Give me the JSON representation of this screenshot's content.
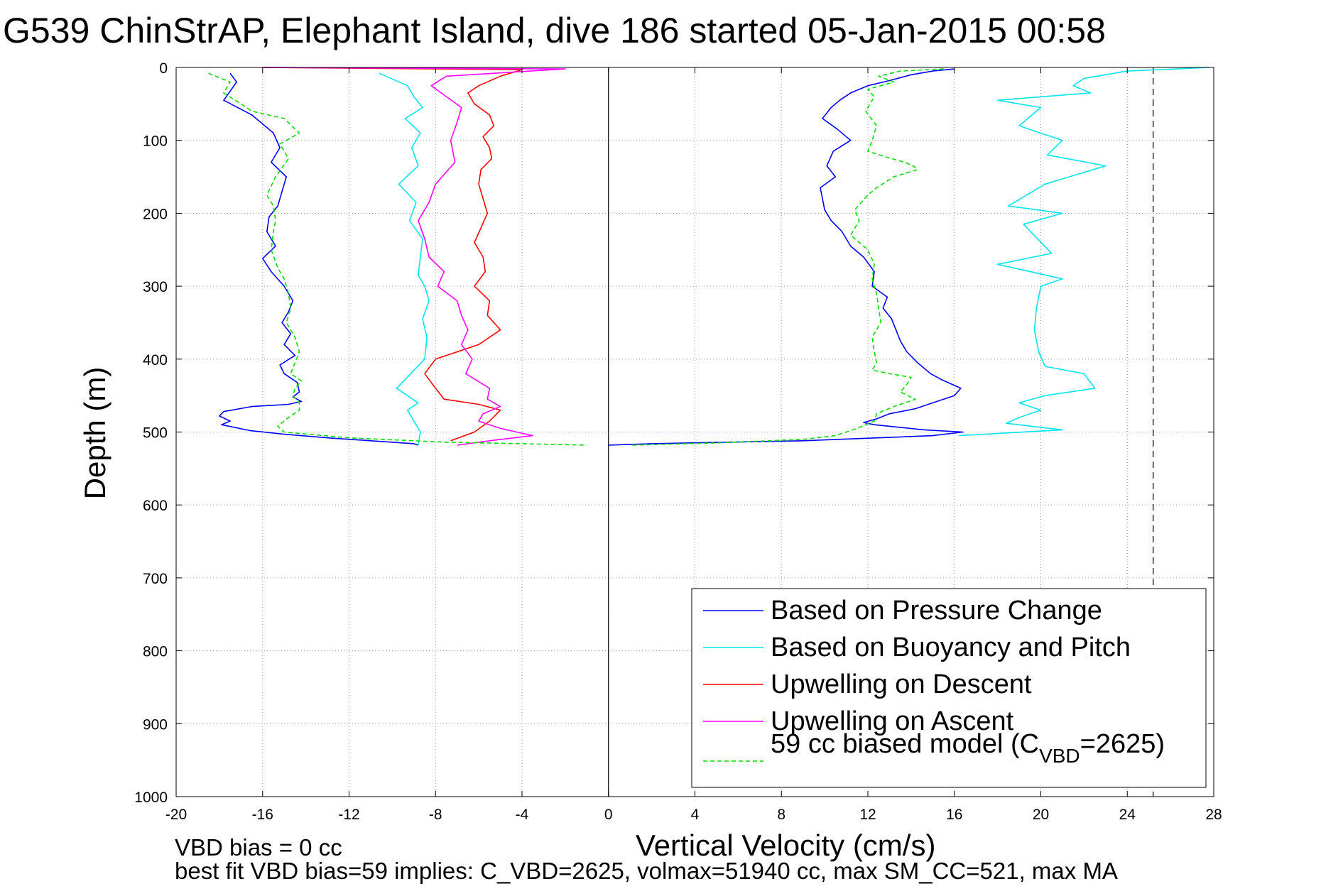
{
  "chart_data": {
    "type": "line",
    "title": "G539 ChinStrAP, Elephant Island, dive 186 started 05-Jan-2015 00:58",
    "xlabel": "Vertical Velocity (cm/s)",
    "ylabel": "Depth (m)",
    "xlim": [
      -20,
      28
    ],
    "ylim": [
      0,
      1000
    ],
    "y_reversed": true,
    "grid": true,
    "legend_position": "bottom-right",
    "x_ticks": [
      "-20",
      "-16",
      "-12",
      "-8",
      "-4",
      "0",
      "4",
      "8",
      "12",
      "16",
      "20",
      "24",
      "28"
    ],
    "y_ticks": [
      "0",
      "100",
      "200",
      "300",
      "400",
      "500",
      "600",
      "700",
      "800",
      "900",
      "1000"
    ],
    "reference_lines": [
      {
        "orientation": "vertical",
        "x": 0,
        "style": "solid"
      },
      {
        "orientation": "vertical",
        "x": 25.2,
        "style": "dashed"
      }
    ],
    "series": [
      {
        "name": "Based on Pressure Change",
        "color": "#0000ff",
        "style": "solid",
        "segments": [
          {
            "x": [
              -17.5,
              -17.2,
              -17.8,
              -16.5,
              -15.5,
              -15.2,
              -15.6,
              -14.9,
              -15.1,
              -15.3,
              -15.7,
              -15.8,
              -15.4,
              -16.0,
              -15.6,
              -15.0,
              -14.6,
              -14.8,
              -15.1,
              -14.7,
              -15.0,
              -14.5,
              -15.2,
              -15.0,
              -14.4,
              -14.3,
              -14.6,
              -14.2,
              -14.8,
              -16.5,
              -17.8,
              -18.0,
              -17.5,
              -17.9,
              -16.6,
              -15.0,
              -13.0,
              -11.0,
              -9.0,
              -8.8
            ],
            "y": [
              8,
              20,
              45,
              65,
              90,
              110,
              130,
              150,
              170,
              190,
              205,
              225,
              245,
              262,
              280,
              300,
              320,
              335,
              350,
              365,
              380,
              395,
              408,
              420,
              432,
              445,
              452,
              458,
              462,
              465,
              472,
              478,
              485,
              490,
              498,
              503,
              508,
              512,
              516,
              518
            ]
          },
          {
            "x": [
              16.0,
              15.0,
              14.0,
              13.0,
              12.0,
              11.2,
              10.7,
              10.3,
              9.9,
              10.6,
              11.2,
              10.4,
              10.1,
              10.5,
              9.8,
              9.9,
              10.0,
              10.3,
              10.8,
              11.2,
              11.8,
              12.3,
              12.2,
              12.9,
              12.7,
              13.1,
              13.3,
              13.5,
              13.8,
              14.3,
              14.9,
              15.4,
              16.3,
              16.0,
              15.0,
              14.2,
              13.0,
              12.4,
              11.8,
              12.3,
              14.6,
              16.4,
              15.0,
              9.0,
              2.0,
              0.0
            ],
            "y": [
              2,
              5,
              10,
              18,
              25,
              35,
              45,
              55,
              70,
              85,
              100,
              115,
              135,
              150,
              165,
              180,
              195,
              210,
              225,
              245,
              260,
              280,
              300,
              315,
              330,
              345,
              360,
              375,
              390,
              405,
              420,
              428,
              440,
              450,
              460,
              468,
              475,
              482,
              487,
              490,
              497,
              500,
              505,
              512,
              516,
              518
            ]
          }
        ]
      },
      {
        "name": "Based on Buoyancy and Pitch",
        "color": "#00e5ee",
        "style": "solid",
        "segments": [
          {
            "x": [
              -10.6,
              -9.3,
              -9.0,
              -8.6,
              -9.4,
              -8.7,
              -9.1,
              -8.8,
              -9.7,
              -8.9,
              -9.2,
              -8.6,
              -8.7,
              -8.8,
              -8.5,
              -8.3,
              -8.6,
              -8.4,
              -8.5,
              -9.8,
              -8.8,
              -9.3,
              -9.0,
              -8.7,
              -8.8
            ],
            "y": [
              8,
              25,
              40,
              55,
              70,
              90,
              110,
              135,
              160,
              185,
              210,
              235,
              260,
              285,
              300,
              320,
              345,
              370,
              400,
              440,
              460,
              470,
              485,
              500,
              518
            ]
          },
          {
            "x": [
              27.8,
              24.0,
              22.0,
              21.5,
              22.3,
              18.0,
              20.0,
              19.0,
              21.0,
              20.3,
              23.0,
              20.2,
              18.5,
              21.0,
              19.2,
              20.5,
              18.0,
              21.0,
              20.0,
              19.8,
              19.7,
              19.9,
              20.2,
              22.0,
              22.5,
              20.2,
              19.0,
              20.0,
              19.0,
              18.4,
              21.0,
              16.2
            ],
            "y": [
              0,
              5,
              15,
              25,
              35,
              45,
              55,
              80,
              100,
              120,
              135,
              160,
              190,
              200,
              215,
              255,
              270,
              290,
              300,
              330,
              360,
              390,
              410,
              420,
              440,
              450,
              460,
              470,
              480,
              488,
              497,
              505
            ]
          }
        ]
      },
      {
        "name": "Upwelling on Descent",
        "color": "#ff0000",
        "style": "solid",
        "segments": [
          {
            "x": [
              -16.0,
              -4.0,
              -5.0,
              -6.0,
              -6.5,
              -6.2,
              -5.5,
              -5.3,
              -5.8,
              -5.5,
              -5.4,
              -5.9,
              -6.0,
              -5.8,
              -5.6,
              -5.9,
              -6.2,
              -5.8,
              -5.7,
              -6.2,
              -5.5,
              -5.6,
              -5.0,
              -6.0,
              -8.0,
              -8.5,
              -8.0,
              -7.6,
              -6.0,
              -5.0,
              -5.5,
              -6.2,
              -7.3
            ],
            "y": [
              0,
              3,
              12,
              25,
              35,
              50,
              65,
              80,
              95,
              110,
              125,
              140,
              160,
              180,
              200,
              220,
              240,
              260,
              280,
              300,
              320,
              340,
              360,
              380,
              400,
              420,
              440,
              455,
              462,
              470,
              485,
              500,
              512
            ]
          }
        ]
      },
      {
        "name": "Upwelling on Ascent",
        "color": "#ff00ff",
        "style": "solid",
        "segments": [
          {
            "x": [
              -16.0,
              -2.0,
              -7.5,
              -8.2,
              -7.5,
              -6.8,
              -7.0,
              -7.3,
              -7.1,
              -8.0,
              -8.3,
              -8.8,
              -8.5,
              -8.3,
              -7.6,
              -7.9,
              -7.0,
              -6.8,
              -6.5,
              -6.8,
              -6.3,
              -6.6,
              -5.5,
              -5.6,
              -5.0,
              -5.8,
              -6.0,
              -5.0,
              -3.5,
              -5.5,
              -7.0
            ],
            "y": [
              0,
              2,
              12,
              25,
              40,
              55,
              75,
              100,
              130,
              160,
              185,
              210,
              235,
              260,
              280,
              300,
              320,
              340,
              360,
              380,
              400,
              420,
              440,
              455,
              465,
              475,
              485,
              495,
              505,
              512,
              518
            ]
          }
        ]
      },
      {
        "name": "59 cc biased model (C_VBD=2625)",
        "color": "#00dd00",
        "style": "dashed",
        "segments": [
          {
            "x": [
              -18.5,
              -17.5,
              -17.8,
              -17.0,
              -16.5,
              -15.0,
              -14.3,
              -15.2,
              -14.8,
              -15.4,
              -15.8,
              -15.5,
              -15.4,
              -15.5,
              -15.6,
              -15.3,
              -15.0,
              -14.8,
              -14.7,
              -14.9,
              -14.5,
              -14.3,
              -14.5,
              -14.7,
              -14.2,
              -14.5,
              -14.6,
              -14.3,
              -14.3,
              -14.8,
              -15.3,
              -15.0,
              -12.0,
              -7.5,
              -4.0,
              -1.0
            ],
            "y": [
              8,
              20,
              35,
              50,
              60,
              70,
              90,
              105,
              125,
              150,
              175,
              190,
              210,
              225,
              250,
              275,
              290,
              310,
              330,
              350,
              370,
              390,
              405,
              420,
              430,
              440,
              450,
              460,
              470,
              480,
              492,
              500,
              508,
              514,
              516,
              518
            ]
          },
          {
            "x": [
              15.5,
              13.5,
              12.5,
              13.2,
              12.0,
              12.3,
              11.9,
              12.4,
              12.2,
              12.0,
              13.1,
              13.7,
              14.1,
              14.3,
              13.2,
              12.4,
              12.0,
              11.4,
              11.6,
              11.2,
              12.0,
              12.3,
              12.2,
              12.4,
              12.5,
              12.6,
              12.2,
              12.3,
              12.4,
              12.2,
              13.0,
              14.0,
              13.8,
              13.5,
              14.2,
              13.2,
              12.4,
              12.3,
              11.5,
              10.5,
              9.0,
              5.0,
              1.0
            ],
            "y": [
              2,
              5,
              12,
              20,
              30,
              40,
              60,
              80,
              100,
              115,
              125,
              130,
              135,
              140,
              150,
              165,
              175,
              195,
              210,
              230,
              250,
              270,
              290,
              310,
              330,
              350,
              370,
              390,
              405,
              415,
              420,
              425,
              435,
              445,
              455,
              465,
              475,
              485,
              495,
              505,
              510,
              515,
              518
            ]
          }
        ]
      }
    ],
    "legend_entries": [
      {
        "label": "Based on Pressure Change",
        "color": "#0000ff",
        "style": "solid"
      },
      {
        "label": "Based on Buoyancy and Pitch",
        "color": "#00e5ee",
        "style": "solid"
      },
      {
        "label": "Upwelling on Descent",
        "color": "#ff0000",
        "style": "solid"
      },
      {
        "label": "Upwelling on Ascent",
        "color": "#ff00ff",
        "style": "solid"
      },
      {
        "label_prefix": "59 cc biased model (C",
        "label_subscript": "VBD",
        "label_suffix": "=2625)",
        "color": "#00dd00",
        "style": "dashed"
      }
    ],
    "annotations": {
      "vbd_bias": "VBD bias = 0 cc",
      "best_fit": "best fit VBD bias=59 implies: C_VBD=2625, volmax=51940 cc, max SM_CC=521, max MA"
    }
  }
}
